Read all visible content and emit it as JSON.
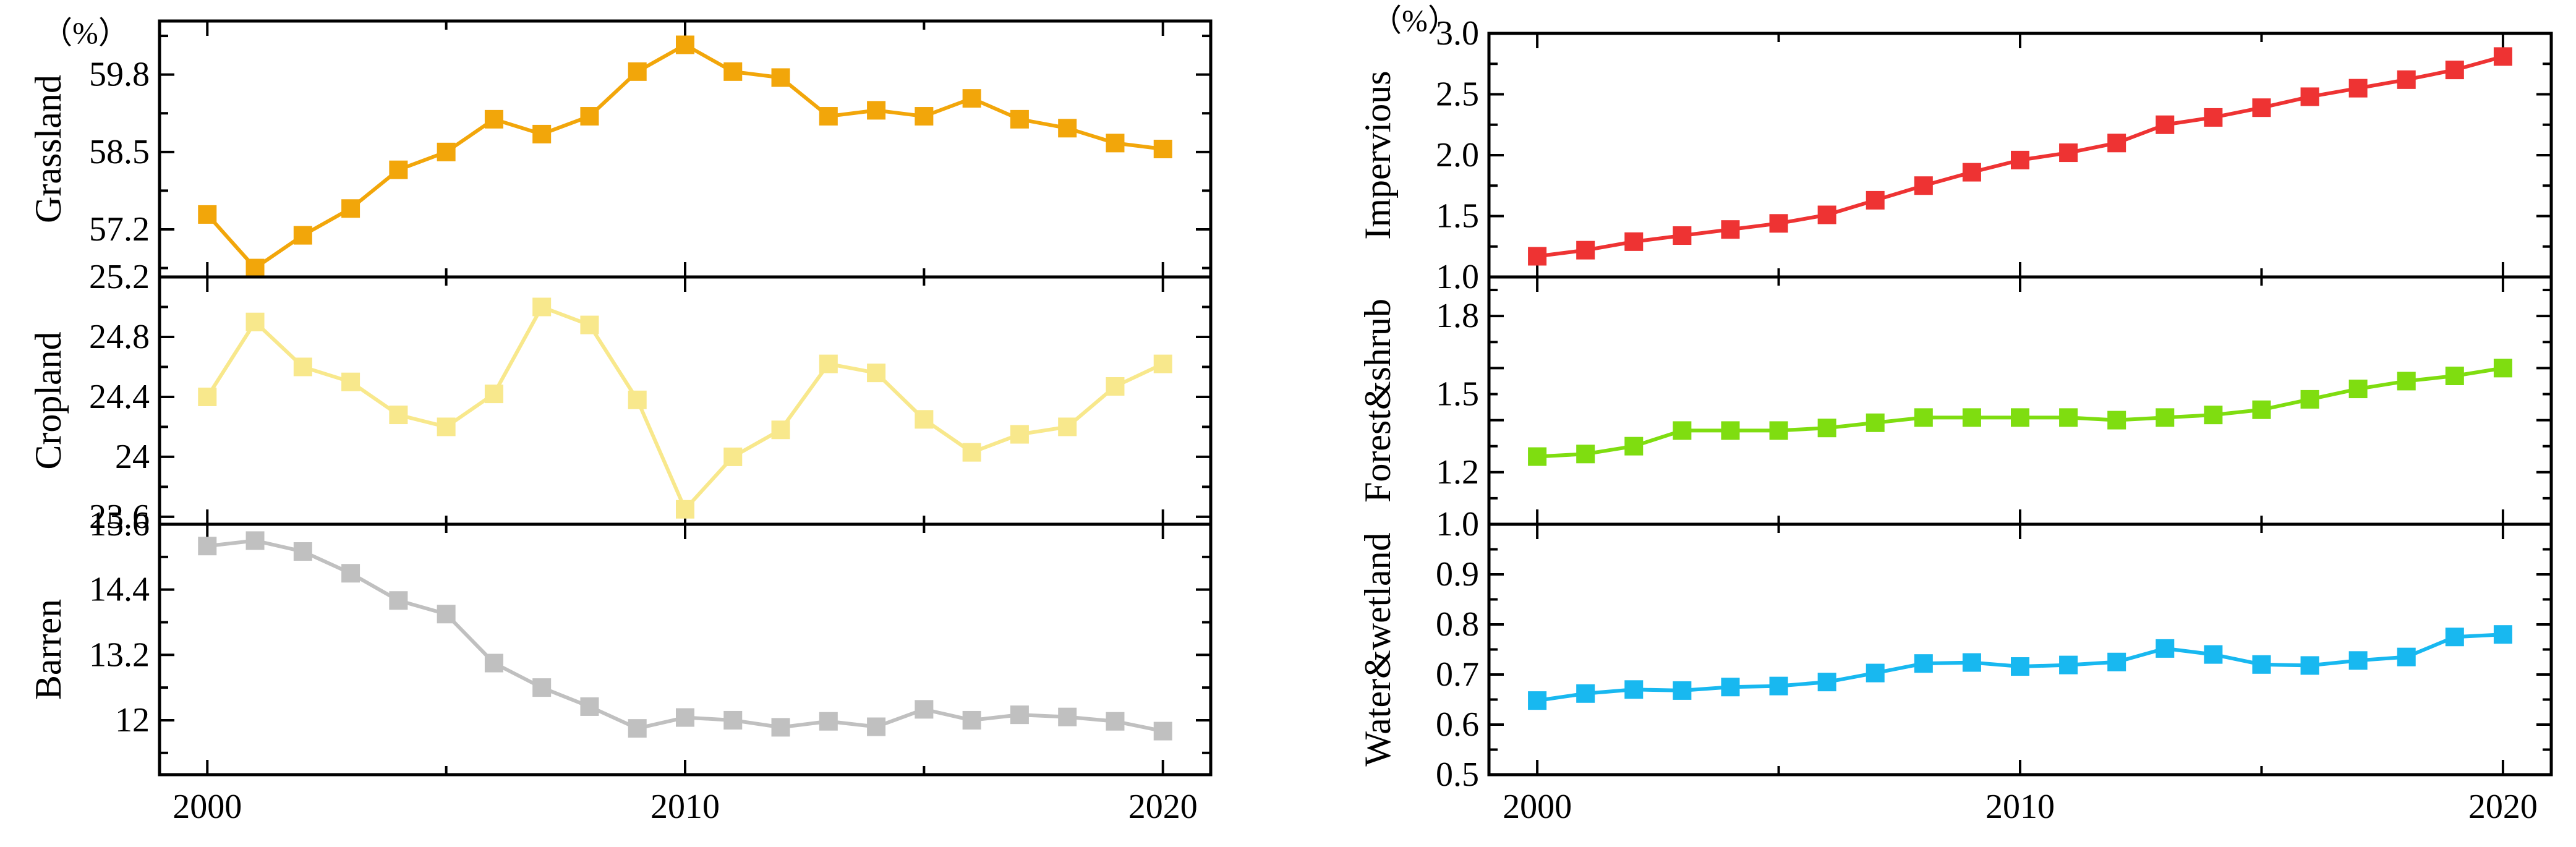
{
  "chart_data": [
    {
      "type": "line",
      "panel": "left-top",
      "unit_label": "（%）",
      "ylabel": "Grassland",
      "ylim": [
        56.4,
        60.7
      ],
      "yticks": [
        57.2,
        58.5,
        59.8
      ],
      "extra_tick_labels": [
        "25.2"
      ],
      "color": "#F2A60A",
      "x": [
        2000,
        2001,
        2002,
        2003,
        2004,
        2005,
        2006,
        2007,
        2008,
        2009,
        2010,
        2011,
        2012,
        2013,
        2014,
        2015,
        2016,
        2017,
        2018,
        2019,
        2020
      ],
      "values": [
        57.45,
        56.55,
        57.1,
        57.55,
        58.2,
        58.5,
        59.05,
        58.8,
        59.1,
        59.85,
        60.3,
        59.85,
        59.75,
        59.1,
        59.2,
        59.1,
        59.4,
        59.05,
        58.9,
        58.65,
        58.55
      ],
      "series": [
        {
          "name": "Grassland"
        }
      ]
    },
    {
      "type": "line",
      "panel": "left-middle",
      "ylabel": "Cropland",
      "ylim": [
        23.55,
        25.2
      ],
      "yticks": [
        23.6,
        24.0,
        24.4,
        24.8
      ],
      "color": "#F8E88C",
      "x": [
        2000,
        2001,
        2002,
        2003,
        2004,
        2005,
        2006,
        2007,
        2008,
        2009,
        2010,
        2011,
        2012,
        2013,
        2014,
        2015,
        2016,
        2017,
        2018,
        2019,
        2020
      ],
      "values": [
        24.4,
        24.9,
        24.6,
        24.5,
        24.28,
        24.2,
        24.42,
        25.0,
        24.88,
        24.38,
        23.65,
        24.0,
        24.18,
        24.62,
        24.56,
        24.25,
        24.03,
        24.15,
        24.2,
        24.47,
        24.62
      ],
      "series": [
        {
          "name": "Cropland"
        }
      ]
    },
    {
      "type": "line",
      "panel": "left-bottom",
      "ylabel": "Barren",
      "ylim": [
        11.0,
        15.6
      ],
      "yticks": [
        12.0,
        13.2,
        14.4,
        15.6
      ],
      "xlim": [
        1999,
        2021
      ],
      "xticks": [
        2000,
        2010,
        2020
      ],
      "color": "#C0C0C0",
      "x": [
        2000,
        2001,
        2002,
        2003,
        2004,
        2005,
        2006,
        2007,
        2008,
        2009,
        2010,
        2011,
        2012,
        2013,
        2014,
        2015,
        2016,
        2017,
        2018,
        2019,
        2020
      ],
      "values": [
        15.2,
        15.3,
        15.1,
        14.7,
        14.2,
        13.95,
        13.05,
        12.6,
        12.25,
        11.85,
        12.05,
        12.0,
        11.87,
        11.98,
        11.88,
        12.2,
        12.0,
        12.1,
        12.06,
        11.98,
        11.8
      ],
      "series": [
        {
          "name": "Barren"
        }
      ]
    },
    {
      "type": "line",
      "panel": "right-top",
      "unit_label": "（%）",
      "ylabel": "Impervious",
      "ylim": [
        1.0,
        3.0
      ],
      "yticks": [
        1.0,
        1.5,
        2.0,
        2.5,
        3.0
      ],
      "tick_decimals": 1,
      "color": "#EE3333",
      "x": [
        2000,
        2001,
        2002,
        2003,
        2004,
        2005,
        2006,
        2007,
        2008,
        2009,
        2010,
        2011,
        2012,
        2013,
        2014,
        2015,
        2016,
        2017,
        2018,
        2019,
        2020
      ],
      "values": [
        1.17,
        1.22,
        1.29,
        1.34,
        1.39,
        1.44,
        1.51,
        1.63,
        1.75,
        1.86,
        1.96,
        2.02,
        2.1,
        2.25,
        2.31,
        2.39,
        2.48,
        2.55,
        2.62,
        2.7,
        2.81
      ],
      "series": [
        {
          "name": "Impervious"
        }
      ]
    },
    {
      "type": "line",
      "panel": "right-middle",
      "ylabel": "Forest&shrub",
      "ylim": [
        1.0,
        1.95
      ],
      "yticks": [
        1.0,
        1.2,
        1.5,
        1.8
      ],
      "tick_decimals": 1,
      "color": "#7FDD10",
      "x": [
        2000,
        2001,
        2002,
        2003,
        2004,
        2005,
        2006,
        2007,
        2008,
        2009,
        2010,
        2011,
        2012,
        2013,
        2014,
        2015,
        2016,
        2017,
        2018,
        2019,
        2020
      ],
      "values": [
        1.26,
        1.27,
        1.3,
        1.36,
        1.36,
        1.36,
        1.37,
        1.39,
        1.41,
        1.41,
        1.41,
        1.41,
        1.4,
        1.41,
        1.42,
        1.44,
        1.48,
        1.52,
        1.55,
        1.57,
        1.6
      ],
      "series": [
        {
          "name": "Forest&shrub"
        }
      ]
    },
    {
      "type": "line",
      "panel": "right-bottom",
      "ylabel": "Water&wetland",
      "ylim": [
        0.5,
        1.0
      ],
      "yticks": [
        0.5,
        0.6,
        0.7,
        0.8,
        0.9
      ],
      "tick_decimals": 1,
      "xlim": [
        1999,
        2021
      ],
      "xticks": [
        2000,
        2010,
        2020
      ],
      "color": "#18B8F0",
      "x": [
        2000,
        2001,
        2002,
        2003,
        2004,
        2005,
        2006,
        2007,
        2008,
        2009,
        2010,
        2011,
        2012,
        2013,
        2014,
        2015,
        2016,
        2017,
        2018,
        2019,
        2020
      ],
      "values": [
        0.648,
        0.662,
        0.67,
        0.668,
        0.675,
        0.677,
        0.685,
        0.703,
        0.722,
        0.724,
        0.716,
        0.719,
        0.725,
        0.752,
        0.74,
        0.72,
        0.718,
        0.728,
        0.735,
        0.775,
        0.78
      ],
      "series": [
        {
          "name": "Water&wetland"
        }
      ]
    }
  ]
}
